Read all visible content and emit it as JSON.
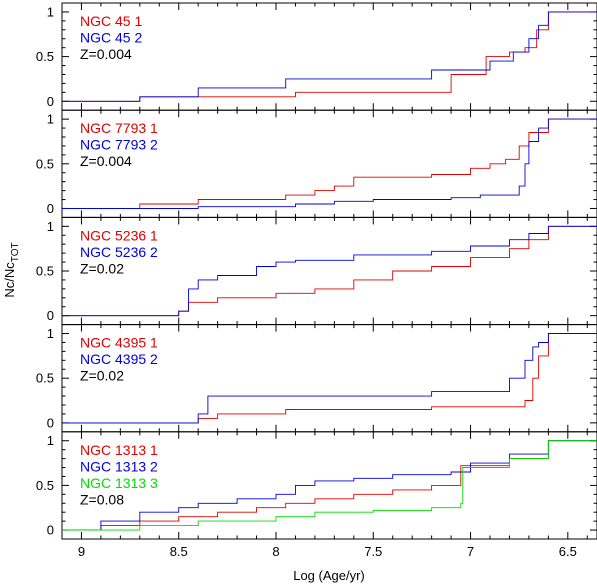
{
  "figure": {
    "xlabel": "Log (Age/yr)",
    "ylabel": "Nc/Nc",
    "ylabel_sub": "TOT"
  },
  "chart_data": [
    {
      "type": "line",
      "xlim": [
        9.1,
        6.35
      ],
      "ylim": [
        -0.1,
        1.1
      ],
      "x_ticks": [
        "9",
        "8.5",
        "8",
        "7.5",
        "7",
        "6.5"
      ],
      "x_tick_values": [
        9,
        8.5,
        8,
        7.5,
        7,
        6.5
      ],
      "y_ticks": [
        "0",
        "0.5",
        "1"
      ],
      "y_tick_values": [
        0,
        0.5,
        1
      ],
      "labels": [
        "NGC 45 1",
        "NGC 45 2",
        "Z=0.004"
      ],
      "label_colors": [
        "#e00000",
        "#0000e0",
        "#000000"
      ],
      "series": [
        {
          "name": "NGC 45 1",
          "color": "#e00000",
          "x": [
            9.1,
            8.7,
            7.9,
            7.1,
            6.92,
            6.8,
            6.72,
            6.66,
            6.6,
            6.35
          ],
          "y": [
            0.0,
            0.05,
            0.1,
            0.3,
            0.5,
            0.55,
            0.6,
            0.8,
            1.0,
            1.0
          ]
        },
        {
          "name": "NGC 45 2",
          "color": "#0000e0",
          "x": [
            9.1,
            8.7,
            8.4,
            7.95,
            7.2,
            6.9,
            6.78,
            6.7,
            6.65,
            6.6,
            6.35
          ],
          "y": [
            0.0,
            0.05,
            0.15,
            0.25,
            0.35,
            0.45,
            0.55,
            0.7,
            0.85,
            1.0,
            1.0
          ]
        }
      ]
    },
    {
      "type": "line",
      "xlim": [
        9.1,
        6.35
      ],
      "ylim": [
        -0.1,
        1.1
      ],
      "x_ticks": [
        "9",
        "8.5",
        "8",
        "7.5",
        "7",
        "6.5"
      ],
      "x_tick_values": [
        9,
        8.5,
        8,
        7.5,
        7,
        6.5
      ],
      "y_ticks": [
        "0",
        "0.5",
        "1"
      ],
      "y_tick_values": [
        0,
        0.5,
        1
      ],
      "labels": [
        "NGC 7793 1",
        "NGC 7793 2",
        "Z=0.004"
      ],
      "label_colors": [
        "#e00000",
        "#0000e0",
        "#000000"
      ],
      "series": [
        {
          "name": "NGC 7793 1",
          "color": "#e00000",
          "x": [
            9.1,
            8.7,
            8.4,
            7.95,
            7.8,
            7.7,
            7.6,
            7.2,
            7.0,
            6.9,
            6.82,
            6.75,
            6.7,
            6.6,
            6.35
          ],
          "y": [
            0.0,
            0.05,
            0.1,
            0.15,
            0.2,
            0.25,
            0.35,
            0.38,
            0.45,
            0.5,
            0.55,
            0.7,
            0.85,
            1.0,
            1.0
          ]
        },
        {
          "name": "NGC 7793 2",
          "color": "#0000e0",
          "x": [
            9.1,
            8.4,
            7.9,
            7.7,
            7.5,
            7.1,
            6.95,
            6.75,
            6.72,
            6.7,
            6.65,
            6.6,
            6.35
          ],
          "y": [
            0.0,
            0.02,
            0.05,
            0.08,
            0.1,
            0.12,
            0.15,
            0.25,
            0.5,
            0.75,
            0.9,
            1.0,
            1.0
          ]
        }
      ]
    },
    {
      "type": "line",
      "xlim": [
        9.1,
        6.35
      ],
      "ylim": [
        -0.1,
        1.1
      ],
      "x_ticks": [
        "9",
        "8.5",
        "8",
        "7.5",
        "7",
        "6.5"
      ],
      "x_tick_values": [
        9,
        8.5,
        8,
        7.5,
        7,
        6.5
      ],
      "y_ticks": [
        "0",
        "0.5",
        "1"
      ],
      "y_tick_values": [
        0,
        0.5,
        1
      ],
      "labels": [
        "NGC 5236 1",
        "NGC 5236 2",
        "Z=0.02"
      ],
      "label_colors": [
        "#e00000",
        "#0000e0",
        "#000000"
      ],
      "series": [
        {
          "name": "NGC 5236 1",
          "color": "#e00000",
          "x": [
            9.1,
            8.5,
            8.45,
            8.3,
            8.0,
            7.8,
            7.6,
            7.4,
            7.2,
            7.0,
            6.8,
            6.7,
            6.6,
            6.35
          ],
          "y": [
            0.0,
            0.05,
            0.15,
            0.2,
            0.25,
            0.3,
            0.4,
            0.5,
            0.55,
            0.65,
            0.75,
            0.85,
            1.0,
            1.0
          ]
        },
        {
          "name": "NGC 5236 2",
          "color": "#0000e0",
          "x": [
            9.1,
            8.5,
            8.45,
            8.4,
            8.3,
            8.1,
            8.0,
            7.9,
            7.6,
            7.2,
            7.0,
            6.8,
            6.7,
            6.6,
            6.35
          ],
          "y": [
            0.0,
            0.05,
            0.3,
            0.4,
            0.45,
            0.55,
            0.6,
            0.62,
            0.68,
            0.72,
            0.78,
            0.85,
            0.92,
            1.0,
            1.0
          ]
        }
      ]
    },
    {
      "type": "line",
      "xlim": [
        9.1,
        6.35
      ],
      "ylim": [
        -0.1,
        1.1
      ],
      "x_ticks": [
        "9",
        "8.5",
        "8",
        "7.5",
        "7",
        "6.5"
      ],
      "x_tick_values": [
        9,
        8.5,
        8,
        7.5,
        7,
        6.5
      ],
      "y_ticks": [
        "0",
        "0.5",
        "1"
      ],
      "y_tick_values": [
        0,
        0.5,
        1
      ],
      "labels": [
        "NGC 4395 1",
        "NGC 4395 2",
        "Z=0.02"
      ],
      "label_colors": [
        "#e00000",
        "#0000e0",
        "#000000"
      ],
      "series": [
        {
          "name": "NGC 4395 1",
          "color": "#e00000",
          "x": [
            9.1,
            8.4,
            8.3,
            7.95,
            7.2,
            6.72,
            6.68,
            6.65,
            6.6,
            6.35
          ],
          "y": [
            0.0,
            0.05,
            0.1,
            0.15,
            0.18,
            0.25,
            0.5,
            0.75,
            1.0,
            1.0
          ]
        },
        {
          "name": "NGC 4395 2",
          "color": "#0000e0",
          "x": [
            9.1,
            8.4,
            8.35,
            7.2,
            6.8,
            6.72,
            6.68,
            6.65,
            6.6,
            6.35
          ],
          "y": [
            0.0,
            0.1,
            0.3,
            0.35,
            0.5,
            0.7,
            0.85,
            0.9,
            1.0,
            1.0
          ]
        }
      ]
    },
    {
      "type": "line",
      "xlim": [
        9.1,
        6.35
      ],
      "ylim": [
        -0.1,
        1.1
      ],
      "x_ticks": [
        "9",
        "8.5",
        "8",
        "7.5",
        "7",
        "6.5"
      ],
      "x_tick_values": [
        9,
        8.5,
        8,
        7.5,
        7,
        6.5
      ],
      "y_ticks": [
        "0",
        "0.5",
        "1"
      ],
      "y_tick_values": [
        0,
        0.5,
        1
      ],
      "labels": [
        "NGC 1313 1",
        "NGC 1313 2",
        "NGC 1313 3",
        "Z=0.08"
      ],
      "label_colors": [
        "#e00000",
        "#0000e0",
        "#00dd00",
        "#000000"
      ],
      "series": [
        {
          "name": "NGC 1313 1",
          "color": "#e00000",
          "x": [
            9.1,
            8.9,
            8.7,
            8.5,
            8.3,
            8.1,
            7.95,
            7.8,
            7.6,
            7.4,
            7.2,
            7.05,
            6.8,
            6.6,
            6.35
          ],
          "y": [
            0.0,
            0.05,
            0.1,
            0.15,
            0.2,
            0.25,
            0.3,
            0.35,
            0.4,
            0.45,
            0.5,
            0.72,
            0.8,
            1.0,
            1.0
          ]
        },
        {
          "name": "NGC 1313 2",
          "color": "#0000e0",
          "x": [
            9.1,
            8.9,
            8.7,
            8.5,
            8.4,
            8.2,
            8.0,
            7.9,
            7.8,
            7.6,
            7.4,
            7.1,
            7.0,
            6.8,
            6.6,
            6.35
          ],
          "y": [
            0.0,
            0.1,
            0.2,
            0.25,
            0.3,
            0.35,
            0.4,
            0.5,
            0.55,
            0.58,
            0.62,
            0.65,
            0.75,
            0.85,
            1.0,
            1.0
          ]
        },
        {
          "name": "NGC 1313 3",
          "color": "#00dd00",
          "x": [
            9.1,
            8.7,
            8.4,
            8.0,
            7.8,
            7.5,
            7.2,
            7.05,
            7.04,
            6.8,
            6.6,
            6.35
          ],
          "y": [
            0.0,
            0.05,
            0.1,
            0.15,
            0.2,
            0.22,
            0.25,
            0.3,
            0.7,
            0.8,
            1.0,
            1.0
          ]
        }
      ]
    }
  ]
}
